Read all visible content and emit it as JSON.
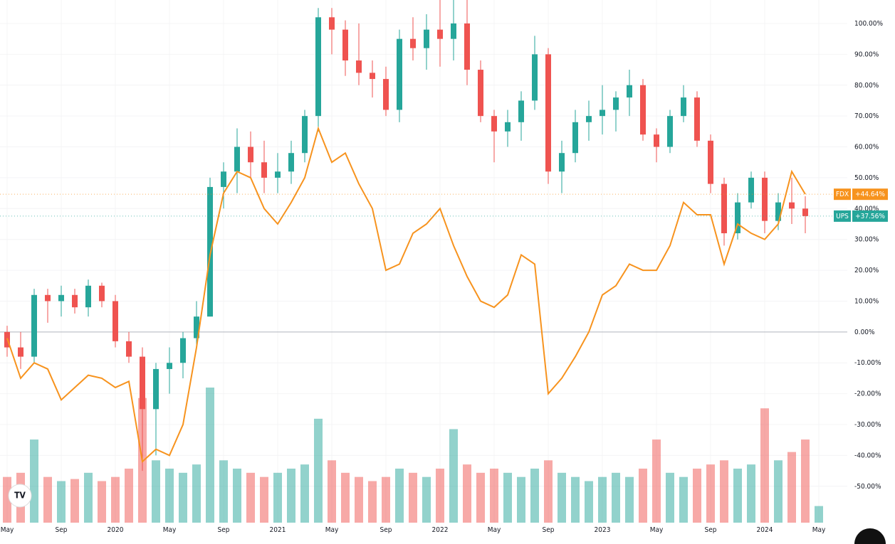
{
  "chart_data": {
    "type": "candlestick",
    "categories": [
      "May",
      null,
      null,
      null,
      "Sep",
      null,
      null,
      null,
      "2020",
      null,
      null,
      null,
      "May",
      null,
      null,
      null,
      "Sep",
      null,
      null,
      null,
      "2021",
      null,
      null,
      null,
      "May",
      null,
      null,
      null,
      "Sep",
      null,
      null,
      null,
      "2022",
      null,
      null,
      null,
      "May",
      null,
      null,
      null,
      "Sep",
      null,
      null,
      null,
      "2023",
      null,
      null,
      null,
      "May",
      null,
      null,
      null,
      "Sep",
      null,
      null,
      null,
      "2024",
      null,
      null,
      null,
      "May"
    ],
    "ylim": [
      -61.8,
      107.6
    ],
    "yticks": [
      {
        "value": 100,
        "label": "100.00%"
      },
      {
        "value": 90,
        "label": "90.00%"
      },
      {
        "value": 80,
        "label": "80.00%"
      },
      {
        "value": 70,
        "label": "70.00%"
      },
      {
        "value": 60,
        "label": "60.00%"
      },
      {
        "value": 50,
        "label": "50.00%"
      },
      {
        "value": 40,
        "label": "40.00%"
      },
      {
        "value": 30,
        "label": "30.00%"
      },
      {
        "value": 20,
        "label": "20.00%"
      },
      {
        "value": 10,
        "label": "10.00%"
      },
      {
        "value": 0,
        "label": "0.00%"
      },
      {
        "value": -10,
        "label": "-10.00%"
      },
      {
        "value": -20,
        "label": "-20.00%"
      },
      {
        "value": -30,
        "label": "-30.00%"
      },
      {
        "value": -40,
        "label": "-40.00%"
      },
      {
        "value": -50,
        "label": "-50.00%"
      }
    ],
    "grid": true,
    "candles": {
      "name": "UPS",
      "up_color": "#26a69a",
      "down_color": "#ef5350",
      "open": [
        0,
        -5,
        -8,
        12,
        10,
        12,
        8,
        15,
        10,
        -3,
        -8,
        -25,
        -12,
        -10,
        -2,
        5,
        47,
        52,
        60,
        55,
        50,
        52,
        58,
        70,
        102,
        98,
        88,
        84,
        82,
        72,
        95,
        92,
        98,
        95,
        100,
        85,
        70,
        65,
        68,
        75,
        90,
        52,
        58,
        68,
        70,
        72,
        76,
        80,
        64,
        60,
        70,
        76,
        62,
        48,
        32,
        42,
        50,
        36,
        42,
        40,
        null
      ],
      "high": [
        2,
        0,
        14,
        14,
        15,
        14,
        17,
        16,
        12,
        0,
        -5,
        -10,
        -5,
        0,
        10,
        50,
        55,
        66,
        65,
        62,
        58,
        62,
        72,
        105,
        105,
        101,
        100,
        88,
        86,
        98,
        102,
        103,
        108,
        108,
        108,
        88,
        72,
        72,
        78,
        96,
        92,
        62,
        72,
        75,
        80,
        78,
        85,
        82,
        66,
        72,
        80,
        78,
        64,
        50,
        45,
        52,
        52,
        45,
        50,
        44,
        null
      ],
      "low": [
        -8,
        -12,
        -10,
        3,
        5,
        6,
        5,
        8,
        -5,
        -10,
        -45,
        -40,
        -20,
        -15,
        -5,
        5,
        40,
        45,
        50,
        45,
        45,
        48,
        55,
        65,
        90,
        83,
        80,
        76,
        70,
        68,
        88,
        85,
        86,
        88,
        80,
        68,
        55,
        60,
        62,
        72,
        48,
        45,
        55,
        62,
        64,
        65,
        70,
        62,
        55,
        58,
        68,
        60,
        45,
        28,
        30,
        40,
        32,
        33,
        35,
        32,
        null
      ],
      "close": [
        -5,
        -8,
        12,
        10,
        12,
        8,
        15,
        10,
        -3,
        -8,
        -25,
        -12,
        -10,
        -2,
        5,
        47,
        52,
        60,
        55,
        50,
        52,
        58,
        70,
        102,
        98,
        88,
        84,
        82,
        72,
        95,
        92,
        98,
        95,
        100,
        85,
        70,
        65,
        68,
        75,
        90,
        52,
        58,
        68,
        70,
        72,
        76,
        80,
        64,
        60,
        70,
        76,
        62,
        48,
        32,
        42,
        50,
        36,
        42,
        40,
        37.56,
        null
      ],
      "value_labels": [
        null,
        null,
        null,
        null,
        null,
        null,
        null,
        null,
        null,
        null,
        null,
        null,
        null,
        null,
        null,
        null,
        null,
        null,
        null,
        null,
        null,
        null,
        null,
        null,
        null,
        null,
        null,
        null,
        null,
        null,
        null,
        null,
        null,
        null,
        null,
        null,
        null,
        null,
        null,
        null,
        null,
        null,
        null,
        null,
        null,
        null,
        null,
        null,
        null,
        null,
        null,
        null,
        null,
        null,
        null,
        null,
        null,
        null,
        null,
        "+37.56%",
        null
      ]
    },
    "volume": [
      22,
      24,
      40,
      22,
      20,
      21,
      24,
      20,
      22,
      26,
      60,
      30,
      26,
      24,
      28,
      65,
      30,
      26,
      24,
      22,
      24,
      26,
      28,
      50,
      30,
      24,
      22,
      20,
      22,
      26,
      24,
      22,
      26,
      45,
      28,
      24,
      26,
      24,
      22,
      26,
      30,
      24,
      22,
      20,
      22,
      24,
      22,
      26,
      40,
      24,
      22,
      26,
      28,
      30,
      26,
      28,
      55,
      30,
      34,
      40,
      8
    ],
    "series": [
      {
        "name": "FDX",
        "color": "#f7931e",
        "values": [
          -2,
          -15,
          -10,
          -12,
          -22,
          -18,
          -14,
          -15,
          -18,
          -16,
          -42,
          -38,
          -40,
          -30,
          -5,
          25,
          45,
          52,
          50,
          40,
          35,
          42,
          50,
          66,
          55,
          58,
          48,
          40,
          20,
          22,
          32,
          35,
          40,
          28,
          18,
          10,
          8,
          12,
          25,
          22,
          -20,
          -15,
          -8,
          0,
          12,
          15,
          22,
          20,
          20,
          28,
          42,
          38,
          38,
          22,
          35,
          32,
          30,
          35,
          52,
          44.64,
          null
        ],
        "value_labels": [
          null,
          null,
          null,
          null,
          null,
          null,
          null,
          null,
          null,
          null,
          null,
          null,
          null,
          null,
          null,
          null,
          null,
          null,
          null,
          null,
          null,
          null,
          null,
          null,
          null,
          null,
          null,
          null,
          null,
          null,
          null,
          null,
          null,
          null,
          null,
          null,
          null,
          null,
          null,
          null,
          null,
          null,
          null,
          null,
          null,
          null,
          null,
          null,
          null,
          null,
          null,
          null,
          null,
          null,
          null,
          null,
          null,
          null,
          null,
          "+44.64%",
          null
        ]
      }
    ]
  }
}
